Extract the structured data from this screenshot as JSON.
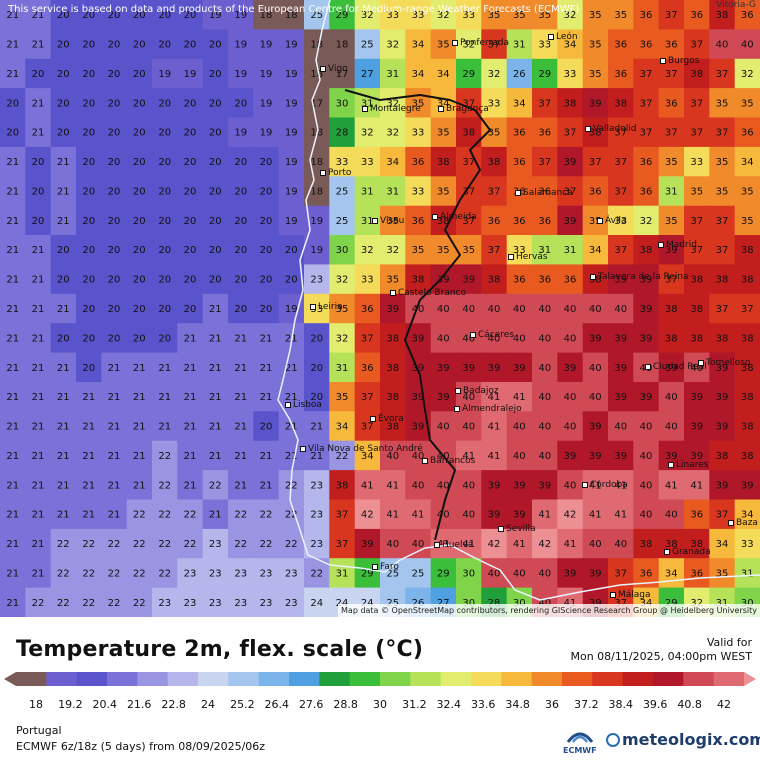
{
  "map": {
    "notice": "This service is based on data and products of the European Centre for Medium-range Weather Forecasts (ECMWF)",
    "attribution": "Map data © OpenStreetMap contributors, rendering GIScience Research Group @ Heidelberg University",
    "corner_label": "Vitoria-G",
    "cities": [
      {
        "name": "León"
      },
      {
        "name": "Ponferrada"
      },
      {
        "name": "Burgos"
      },
      {
        "name": "Vigo"
      },
      {
        "name": "Montalegre"
      },
      {
        "name": "Bragança"
      },
      {
        "name": "Valladolid"
      },
      {
        "name": "Porto"
      },
      {
        "name": "Salamanca"
      },
      {
        "name": "Viseu"
      },
      {
        "name": "Almeida"
      },
      {
        "name": "Ávila"
      },
      {
        "name": "Madrid"
      },
      {
        "name": "Hervás"
      },
      {
        "name": "Talavera de la Reina"
      },
      {
        "name": "Castelo Branco"
      },
      {
        "name": "Leiria"
      },
      {
        "name": "Cáceres"
      },
      {
        "name": "Ciudad Real"
      },
      {
        "name": "Tomelloso"
      },
      {
        "name": "Badajoz"
      },
      {
        "name": "Almendralejo"
      },
      {
        "name": "Lisboa"
      },
      {
        "name": "Évora"
      },
      {
        "name": "Vila Nova de Santo André"
      },
      {
        "name": "Barrancos"
      },
      {
        "name": "Linares"
      },
      {
        "name": "Córdoba"
      },
      {
        "name": "Baza"
      },
      {
        "name": "Sevilla"
      },
      {
        "name": "Huelva"
      },
      {
        "name": "Granada"
      },
      {
        "name": "Faro"
      },
      {
        "name": "Málaga"
      }
    ],
    "grid_values": [
      "21 21 20 20 20 20 20 20 19 19 18 18 25 29 32 33 33 32 33 35 35 35 32 35 35 36 37 36 38 36",
      "21 21 20 20 20 20 20 20 20 19 19 19 18 18 25 32 34 35 32 37 31 33 34 35 36 36 36 37 40 40",
      "21 20 20 20 20 20 19 19 20 19 19 19 18 17 27 31 34 34 29 32 26 29 33 35 36 37 37 38 37 32",
      "20 21 20 20 20 20 20 20 20 20 19 19 17 30 31 32 35 34 37 33 34 37 38 39 38 37 36 37 35 35",
      "20 21 20 20 20 20 20 20 20 19 19 19 18 28 32 32 33 35 38 35 36 36 37 38 37 37 37 37 37 36",
      "21 20 21 20 20 20 20 20 20 20 20 19 18 33 33 34 36 38 37 38 36 37 39 37 37 36 35 33 35 34",
      "21 20 21 20 20 20 20 20 20 20 20 19 18 25 31 31 33 35 37 37 36 36 37 36 37 36 31 35 35 35",
      "21 20 21 20 20 20 20 20 20 20 20 19 19 25 31 35 36 38 37 36 36 36 39 35 33 32 35 37 37 35",
      "21 21 20 20 20 20 20 20 20 20 20 20 19 30 32 32 35 35 35 37 33 31 31 34 37 38 39 37 37 38",
      "21 21 20 20 20 20 20 20 20 20 20 20 23 32 33 35 38 39 39 38 36 36 36 38 39 39 37 38 38 38",
      "21 21 21 20 20 20 20 20 21 20 20 19 33 35 36 39 40 40 40 40 40 40 40 40 40 39 38 38 37 37",
      "21 21 20 20 20 20 20 21 21 21 21 21 20 32 37 38 39 40 40 40 40 40 40 39 39 39 38 38 38 38",
      "21 21 21 20 21 21 21 21 21 21 21 21 20 31 36 38 39 39 39 39 39 40 39 40 39 40 39 40 39 38",
      "21 21 21 21 21 21 21 21 21 21 21 21 20 35 37 38 39 39 40 41 41 40 40 40 39 39 40 39 39 38",
      "21 21 21 21 21 21 21 21 21 21 20 21 21 34 37 38 39 40 40 41 40 40 40 39 40 40 40 39 39 38",
      "21 21 21 21 21 21 22 21 21 21 21 21 21 22 34 40 40 40 41 41 40 40 39 39 39 40 39 39 38 38",
      "21 21 21 21 21 21 22 21 22 21 21 22 23 38 41 41 40 40 40 39 39 39 40 41 41 40 41 41 39 39",
      "21 21 21 21 21 22 22 22 21 22 22 22 23 37 42 41 41 40 40 39 39 41 42 41 41 40 40 36 37 34",
      "21 21 22 22 22 22 22 22 23 22 22 22 23 37 39 40 40 41 41 42 41 42 41 40 40 38 38 38 34 33",
      "21 21 22 22 22 22 22 23 23 23 23 23 22 31 29 25 25 29 30 40 40 40 39 39 37 36 34 36 35 31",
      "21 22 22 22 22 22 23 23 23 23 23 23 24 24 24 25 26 27 30 28 30 40 41 39 37 34 29 32 31 30"
    ]
  },
  "title": "Temperature 2m, flex. scale (°C)",
  "valid_label": "Valid for",
  "valid_time": "Mon 08/11/2025, 04:00pm WEST",
  "legend": {
    "ticks": [
      "18",
      "19.2",
      "20.4",
      "21.6",
      "22.8",
      "24",
      "25.2",
      "26.4",
      "27.6",
      "28.8",
      "30",
      "31.2",
      "32.4",
      "33.6",
      "34.8",
      "36",
      "37.2",
      "38.4",
      "39.6",
      "40.8",
      "42"
    ],
    "colors": {
      "c18": "#7a5a56",
      "c19": "#6e5fd0",
      "c20": "#5a54cc",
      "c21": "#7a72d8",
      "c22": "#9a95e2",
      "c23": "#b4b6ec",
      "c24": "#c8d4f0",
      "c25": "#a4c6ee",
      "c26": "#7ab4ea",
      "c27": "#4fa0e0",
      "c28": "#1fa03a",
      "c29": "#3bbf3a",
      "c30": "#7fd44a",
      "c31": "#b6e25a",
      "c32": "#e2ec6e",
      "c33": "#f4dc5a",
      "c34": "#f6b93c",
      "c35": "#f08a2a",
      "c36": "#e85a20",
      "c37": "#d8361e",
      "c38": "#c21e1e",
      "c39": "#b0182a",
      "c40": "#d04a55",
      "c41": "#e06a72",
      "c42": "#ec9094"
    }
  },
  "region": "Portugal",
  "model_line": "ECMWF 6z/18z (5 days) from  08/09/2025/06z",
  "logos": {
    "ecmwf": "ECMWF",
    "meteologix": "meteologix.com"
  }
}
